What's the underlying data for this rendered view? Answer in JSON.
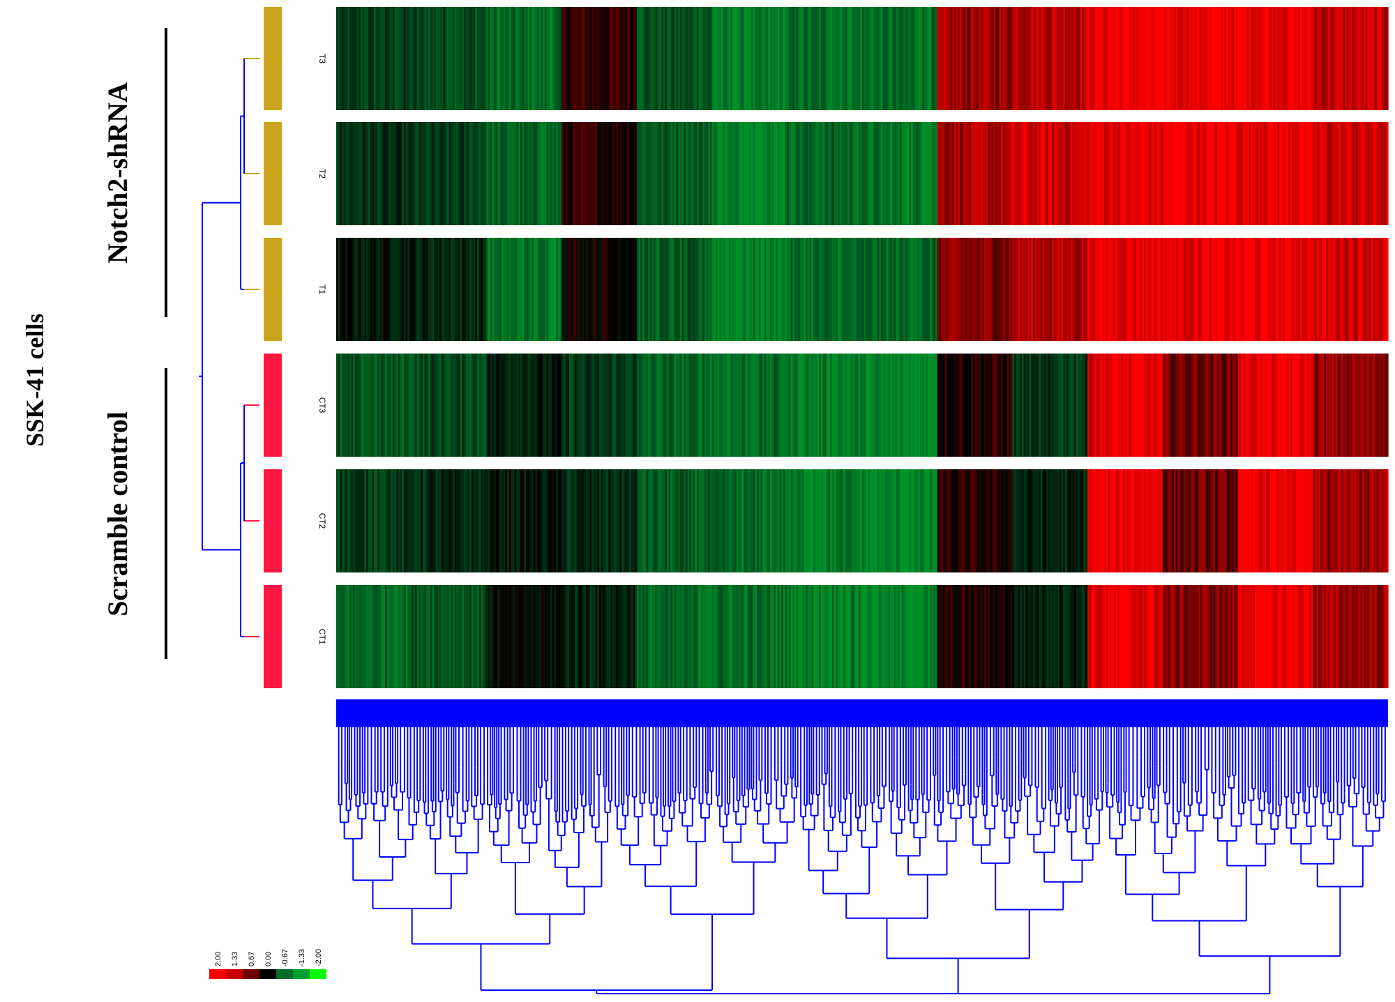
{
  "chart_data": {
    "type": "heatmap",
    "title": "",
    "cell_line_label": "SSK-41 cells",
    "groups": [
      {
        "name": "Notch2-shRNA",
        "color": "#c9a31c",
        "samples": [
          "T3",
          "T2",
          "T1"
        ]
      },
      {
        "name": "Scramble control",
        "color": "#ff1744",
        "samples": [
          "CT3",
          "CT2",
          "CT1"
        ]
      }
    ],
    "rows": [
      "T3",
      "T2",
      "T1",
      "CT3",
      "CT2",
      "CT1"
    ],
    "column_blocks": [
      {
        "values": [
          -0.9,
          -0.7,
          -0.3,
          -1.2,
          -0.8,
          -1.4
        ]
      },
      {
        "values": [
          -1.0,
          -0.9,
          -0.5,
          -1.0,
          -0.6,
          -1.1
        ]
      },
      {
        "values": [
          -1.5,
          -1.4,
          -1.6,
          -0.4,
          -0.3,
          -0.2
        ]
      },
      {
        "values": [
          0.4,
          0.3,
          0.1,
          -0.8,
          -0.6,
          -0.4
        ]
      },
      {
        "values": [
          -1.1,
          -1.2,
          -1.3,
          -1.4,
          -1.3,
          -1.5
        ]
      },
      {
        "values": [
          -1.8,
          -1.8,
          -1.8,
          -1.5,
          -1.5,
          -1.5
        ]
      },
      {
        "values": [
          -1.5,
          -1.4,
          -1.5,
          -1.7,
          -1.7,
          -1.7
        ]
      },
      {
        "values": [
          -1.5,
          -1.6,
          -1.4,
          -1.9,
          -1.9,
          -1.9
        ]
      },
      {
        "values": [
          1.2,
          1.3,
          1.0,
          0.3,
          0.2,
          0.2
        ]
      },
      {
        "values": [
          1.5,
          1.6,
          1.4,
          -0.8,
          -0.5,
          -0.4
        ]
      },
      {
        "values": [
          1.9,
          1.8,
          1.9,
          1.8,
          1.9,
          1.8
        ]
      },
      {
        "values": [
          1.9,
          1.9,
          1.9,
          0.9,
          0.8,
          1.0
        ]
      },
      {
        "values": [
          1.9,
          1.9,
          1.9,
          1.9,
          1.9,
          1.9
        ]
      },
      {
        "values": [
          1.5,
          1.6,
          1.7,
          1.1,
          1.2,
          1.2
        ]
      }
    ],
    "color_scale": {
      "ticks": [
        "2.00",
        "1.33",
        "0.67",
        "0.00",
        "-0.67",
        "-1.33",
        "-2.00"
      ],
      "colors": [
        "#ff0000",
        "#c80000",
        "#6e0000",
        "#000000",
        "#006e28",
        "#00a032",
        "#00ff00"
      ]
    },
    "dendrogram_color": "#0000ff",
    "grid": false
  }
}
